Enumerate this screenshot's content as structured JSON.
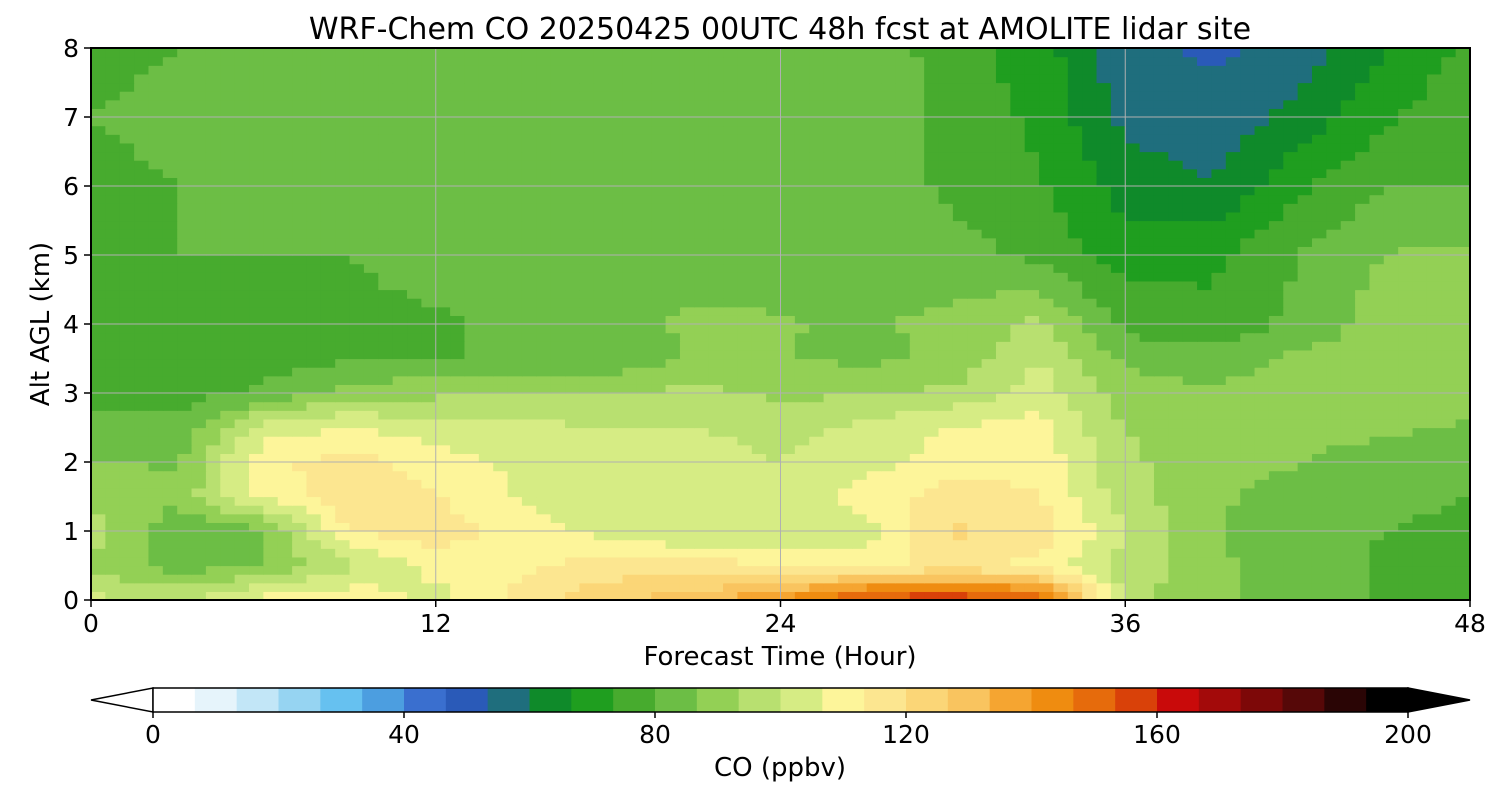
{
  "chart_data": {
    "type": "heatmap",
    "title": "WRF-Chem CO  20250425 00UTC 48h fcst at AMOLITE lidar site",
    "xlabel": "Forecast Time (Hour)",
    "ylabel": "Alt AGL (km)",
    "xlim": [
      0,
      48
    ],
    "ylim": [
      0,
      8
    ],
    "x_ticks": [
      "0",
      "12",
      "24",
      "36",
      "48"
    ],
    "y_ticks": [
      "0",
      "1",
      "2",
      "3",
      "4",
      "5",
      "6",
      "7",
      "8"
    ],
    "grid": true,
    "colorbar": {
      "label": "CO  (ppbv)",
      "range": [
        0,
        200
      ],
      "ticks": [
        "0",
        "40",
        "80",
        "120",
        "160",
        "200"
      ],
      "extend": "both",
      "colors": [
        "#ffffff",
        "#e6f4fb",
        "#c2e6f7",
        "#96d4f2",
        "#66c1f0",
        "#4c9ee0",
        "#3a6fcf",
        "#2a5ab8",
        "#1f6e7d",
        "#0f8a2a",
        "#1f9e1f",
        "#47ab2e",
        "#6cbe45",
        "#93d055",
        "#b8e070",
        "#d6ec84",
        "#fdf59a",
        "#fce690",
        "#fbd677",
        "#f9c45f",
        "#f5a531",
        "#ef8c10",
        "#e66b0c",
        "#d94109",
        "#c90a0a",
        "#a30a0a",
        "#7d0808",
        "#560808",
        "#2a0505",
        "#000000"
      ]
    },
    "x_hours": [
      0,
      3,
      6,
      9,
      12,
      15,
      18,
      21,
      24,
      27,
      30,
      33,
      36,
      39,
      42,
      45,
      48
    ],
    "y_km": [
      0,
      0.5,
      1,
      1.5,
      2,
      2.5,
      3,
      3.5,
      4,
      5,
      6,
      7,
      8
    ],
    "values_ppbv": [
      [
        102,
        99,
        110,
        112,
        104,
        116,
        126,
        131,
        140,
        158,
        160,
        155,
        96,
        88,
        83,
        79,
        78
      ],
      [
        92,
        83,
        86,
        99,
        109,
        112,
        116,
        116,
        114,
        111,
        116,
        110,
        98,
        88,
        83,
        79,
        78
      ],
      [
        97,
        81,
        85,
        114,
        117,
        110,
        104,
        100,
        102,
        103,
        121,
        118,
        100,
        88,
        82,
        80,
        78
      ],
      [
        91,
        89,
        108,
        117,
        114,
        106,
        104,
        104,
        103,
        110,
        117,
        114,
        96,
        88,
        83,
        82,
        80
      ],
      [
        87,
        86,
        112,
        116,
        110,
        105,
        106,
        103,
        100,
        104,
        110,
        111,
        95,
        89,
        87,
        84,
        82
      ],
      [
        82,
        82,
        103,
        107,
        103,
        102,
        100,
        100,
        98,
        102,
        107,
        109,
        93,
        89,
        88,
        88,
        86
      ],
      [
        77,
        77,
        81,
        90,
        92,
        94,
        93,
        95,
        92,
        93,
        95,
        104,
        90,
        88,
        90,
        89,
        88
      ],
      [
        77,
        76,
        77,
        79,
        80,
        80,
        82,
        87,
        87,
        85,
        88,
        100,
        85,
        83,
        88,
        90,
        91
      ],
      [
        78,
        76,
        77,
        78,
        79,
        82,
        84,
        88,
        87,
        86,
        88,
        95,
        78,
        75,
        82,
        90,
        93
      ],
      [
        79,
        80,
        80,
        80,
        83,
        85,
        86,
        83,
        85,
        86,
        83,
        78,
        70,
        72,
        80,
        87,
        88
      ],
      [
        79,
        80,
        80,
        82,
        84,
        86,
        84,
        81,
        83,
        86,
        78,
        74,
        64,
        60,
        72,
        80,
        80
      ],
      [
        80,
        81,
        82,
        83,
        85,
        86,
        83,
        80,
        82,
        87,
        77,
        72,
        58,
        56,
        62,
        72,
        79
      ],
      [
        79,
        80,
        82,
        83,
        85,
        85,
        82,
        80,
        81,
        85,
        76,
        70,
        55,
        52,
        56,
        66,
        75
      ]
    ]
  }
}
